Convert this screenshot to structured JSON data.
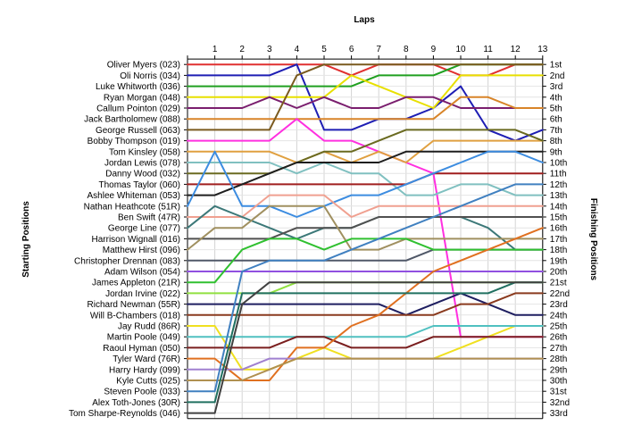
{
  "chart_data": {
    "type": "line",
    "title": "",
    "xlabel": "Laps",
    "ylabel_left": "Starting Positions",
    "ylabel_right": "Finishing Positions",
    "laps": [
      "1",
      "2",
      "3",
      "4",
      "5",
      "6",
      "7",
      "8",
      "9",
      "10",
      "11",
      "12",
      "13"
    ],
    "finishing_labels": [
      "1st",
      "2nd",
      "3rd",
      "4th",
      "5th",
      "6th",
      "7th",
      "8th",
      "9th",
      "10th",
      "11th",
      "12th",
      "13th",
      "14th",
      "15th",
      "16th",
      "17th",
      "18th",
      "19th",
      "20th",
      "21st",
      "22nd",
      "23rd",
      "24th",
      "25th",
      "26th",
      "27th",
      "28th",
      "29th",
      "30th",
      "31st",
      "32nd",
      "33rd"
    ],
    "grid": true,
    "series": [
      {
        "name": "Oliver Myers (023)",
        "color": "#e03030",
        "positions": [
          1,
          1,
          1,
          1,
          1,
          2,
          1,
          1,
          1,
          2,
          2,
          1,
          1
        ]
      },
      {
        "name": "Oli Norris (034)",
        "color": "#1e1eb4",
        "positions": [
          2,
          2,
          2,
          1,
          7,
          7,
          6,
          6,
          5,
          3,
          7,
          8,
          7
        ]
      },
      {
        "name": "Luke Whitworth (036)",
        "color": "#20a020",
        "positions": [
          3,
          3,
          3,
          3,
          3,
          3,
          2,
          2,
          2,
          1,
          1,
          1,
          1
        ]
      },
      {
        "name": "Ryan Morgan (048)",
        "color": "#e8e000",
        "positions": [
          4,
          4,
          4,
          4,
          4,
          2,
          3,
          4,
          5,
          2,
          2,
          2,
          2
        ]
      },
      {
        "name": "Callum Pointon (029)",
        "color": "#7a1e6e",
        "positions": [
          5,
          5,
          4,
          5,
          4,
          5,
          5,
          4,
          4,
          5,
          5,
          5,
          5
        ]
      },
      {
        "name": "Jack Bartholomew (088)",
        "color": "#d88428",
        "positions": [
          6,
          6,
          6,
          6,
          6,
          6,
          6,
          6,
          6,
          4,
          4,
          5,
          5
        ]
      },
      {
        "name": "George Russell (063)",
        "color": "#7a5a1e",
        "positions": [
          7,
          7,
          7,
          2,
          1,
          1,
          1,
          1,
          1,
          1,
          1,
          1,
          1
        ]
      },
      {
        "name": "Bobby Thompson (019)",
        "color": "#ff30e0",
        "positions": [
          8,
          8,
          8,
          6,
          8,
          8,
          9,
          10,
          11,
          26,
          26,
          26,
          26
        ]
      },
      {
        "name": "Tom Kinsley (058)",
        "color": "#e0a040",
        "positions": [
          9,
          9,
          9,
          10,
          9,
          10,
          9,
          10,
          8,
          8,
          8,
          8,
          8
        ]
      },
      {
        "name": "Jordan Lewis (078)",
        "color": "#80c0c0",
        "positions": [
          10,
          10,
          10,
          11,
          10,
          11,
          11,
          13,
          13,
          12,
          12,
          13,
          13
        ]
      },
      {
        "name": "Danny Wood (032)",
        "color": "#6a6a20",
        "positions": [
          11,
          11,
          11,
          10,
          9,
          9,
          8,
          7,
          7,
          7,
          7,
          7,
          8
        ]
      },
      {
        "name": "Thomas Taylor (060)",
        "color": "#a01e1e",
        "positions": [
          12,
          12,
          12,
          12,
          12,
          12,
          12,
          12,
          11,
          11,
          11,
          11,
          11
        ]
      },
      {
        "name": "Ashlee Whiteman (053)",
        "color": "#1e1e1e",
        "positions": [
          13,
          12,
          11,
          10,
          10,
          10,
          10,
          9,
          9,
          9,
          9,
          9,
          9
        ]
      },
      {
        "name": "Nathan Heathcote (51R)",
        "color": "#3c8ce0",
        "positions": [
          9,
          14,
          14,
          15,
          14,
          13,
          13,
          12,
          11,
          10,
          9,
          9,
          10
        ]
      },
      {
        "name": "Ben Swift (47R)",
        "color": "#f0a090",
        "positions": [
          15,
          15,
          13,
          13,
          13,
          15,
          14,
          14,
          14,
          14,
          14,
          14,
          14
        ]
      },
      {
        "name": "George Line (077)",
        "color": "#3c7878",
        "positions": [
          14,
          15,
          16,
          17,
          16,
          16,
          15,
          15,
          15,
          15,
          16,
          18,
          18
        ]
      },
      {
        "name": "Harrison Wignall (016)",
        "color": "#505050",
        "positions": [
          17,
          17,
          17,
          16,
          16,
          16,
          15,
          15,
          15,
          15,
          15,
          15,
          15
        ]
      },
      {
        "name": "Matthew Hirst (096)",
        "color": "#a09060",
        "positions": [
          16,
          16,
          14,
          14,
          14,
          18,
          18,
          17,
          17,
          17,
          17,
          17,
          17
        ]
      },
      {
        "name": "Christopher Drennan (083)",
        "color": "#505868",
        "positions": [
          19,
          19,
          19,
          19,
          19,
          19,
          19,
          19,
          18,
          18,
          18,
          18,
          18
        ]
      },
      {
        "name": "Adam Wilson (054)",
        "color": "#9050e0",
        "positions": [
          20,
          20,
          20,
          20,
          20,
          20,
          20,
          20,
          20,
          20,
          20,
          20,
          20
        ]
      },
      {
        "name": "James Appleton (21R)",
        "color": "#30c030",
        "positions": [
          21,
          18,
          17,
          17,
          18,
          17,
          17,
          17,
          18,
          18,
          18,
          18,
          18
        ]
      },
      {
        "name": "Jordan Irvine (022)",
        "color": "#90e040",
        "positions": [
          22,
          22,
          22,
          21,
          21,
          21,
          21,
          21,
          21,
          21,
          21,
          21,
          21
        ]
      },
      {
        "name": "Richard Newman (55R)",
        "color": "#1e1e60",
        "positions": [
          23,
          23,
          23,
          23,
          23,
          23,
          23,
          24,
          23,
          22,
          23,
          24,
          24
        ]
      },
      {
        "name": "Will B-Chambers (018)",
        "color": "#8a3a1e",
        "positions": [
          24,
          24,
          24,
          24,
          24,
          24,
          24,
          24,
          24,
          23,
          23,
          22,
          22
        ]
      },
      {
        "name": "Jay Rudd (86R)",
        "color": "#f0e020",
        "positions": [
          25,
          29,
          29,
          28,
          27,
          28,
          28,
          28,
          28,
          27,
          26,
          25,
          25
        ]
      },
      {
        "name": "Martin Poole (049)",
        "color": "#50c0c0",
        "positions": [
          26,
          26,
          26,
          26,
          26,
          26,
          26,
          26,
          25,
          25,
          25,
          25,
          25
        ]
      },
      {
        "name": "Raoul Hyman (050)",
        "color": "#7a1e1e",
        "positions": [
          27,
          27,
          27,
          26,
          26,
          27,
          27,
          27,
          26,
          26,
          26,
          26,
          26
        ]
      },
      {
        "name": "Tyler Ward (76R)",
        "color": "#e07020",
        "positions": [
          28,
          30,
          30,
          27,
          27,
          25,
          24,
          22,
          20,
          19,
          18,
          17,
          16
        ]
      },
      {
        "name": "Harry Hardy (099)",
        "color": "#a080d0",
        "positions": [
          29,
          29,
          28,
          28,
          28,
          28,
          28,
          28,
          28,
          28,
          28,
          28,
          28
        ]
      },
      {
        "name": "Kyle Cutts (025)",
        "color": "#b09050",
        "positions": [
          30,
          30,
          29,
          28,
          28,
          28,
          28,
          28,
          28,
          28,
          28,
          28,
          28
        ]
      },
      {
        "name": "Steven Poole (033)",
        "color": "#4080c0",
        "positions": [
          31,
          20,
          19,
          19,
          19,
          18,
          17,
          16,
          15,
          14,
          13,
          12,
          12
        ]
      },
      {
        "name": "Alex Toth-Jones (30R)",
        "color": "#207060",
        "positions": [
          32,
          22,
          22,
          22,
          22,
          22,
          22,
          22,
          22,
          22,
          22,
          21,
          21
        ]
      },
      {
        "name": "Tom Sharpe-Reynolds (046)",
        "color": "#404040",
        "positions": [
          33,
          23,
          21,
          21,
          21,
          21,
          21,
          21,
          21,
          21,
          21,
          21,
          21
        ]
      }
    ]
  }
}
